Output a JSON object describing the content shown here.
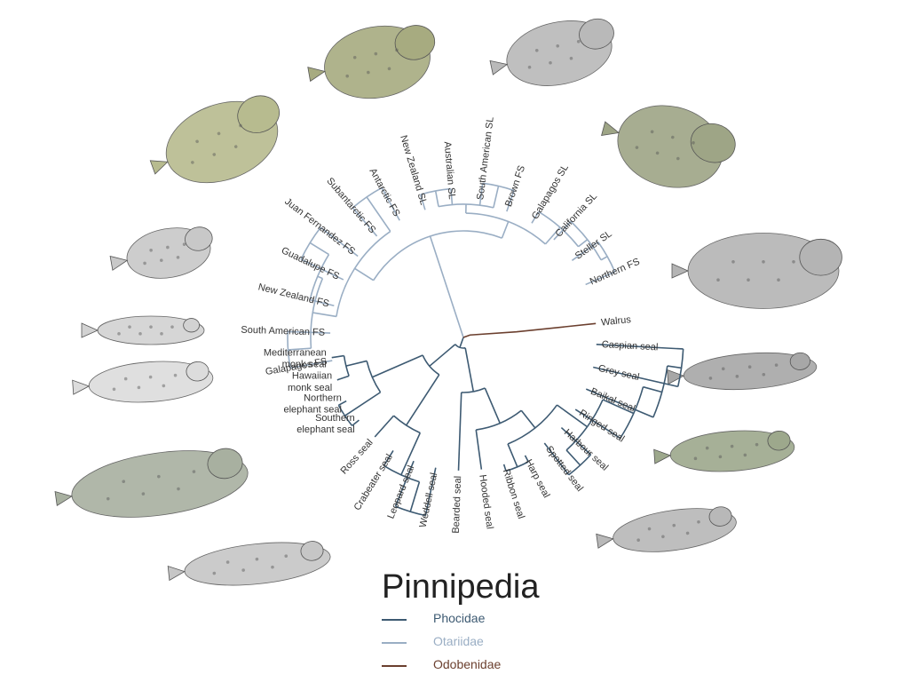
{
  "title": "Pinnipedia",
  "legend": [
    {
      "name": "Phocidae",
      "color": "#3d5a72"
    },
    {
      "name": "Otariidae",
      "color": "#9aaec4"
    },
    {
      "name": "Odobenidae",
      "color": "#6b3f2e"
    }
  ],
  "tips": [
    "Galapagos FS",
    "South American FS",
    "New Zealand FS",
    "Guadalupe FS",
    "Juan Fernandez FS",
    "Subantarctic FS",
    "Antarctic FS",
    "New Zealand SL",
    "Australian SL",
    "South American SL",
    "Brown FS",
    "Galapagos SL",
    "California SL",
    "Steller SL",
    "Northern FS",
    "Walrus",
    "Caspian seal",
    "Grey seal",
    "Baikal seal",
    "Ringed seal",
    "Harbour seal",
    "Spotted seal",
    "Harp seal",
    "Ribbon seal",
    "Hooded seal",
    "Bearded seal",
    "Weddell seal",
    "Leopard seal",
    "Crabeater seal",
    "Ross seal",
    "Southern elephant seal",
    "Northern elephant seal",
    "Hawaiian monk seal",
    "Mediterranean monk seal"
  ],
  "illustrations": [
    "fur-seal-pair",
    "fur-seal-pair",
    "sea-lion",
    "sea-lion-pair",
    "striped-seal",
    "walrus-pair",
    "monk-seal",
    "grey-seal",
    "monk-seal-pair",
    "ringed-seal",
    "elephant-seal-pair",
    "harbour-seal",
    "weddell-seal"
  ]
}
